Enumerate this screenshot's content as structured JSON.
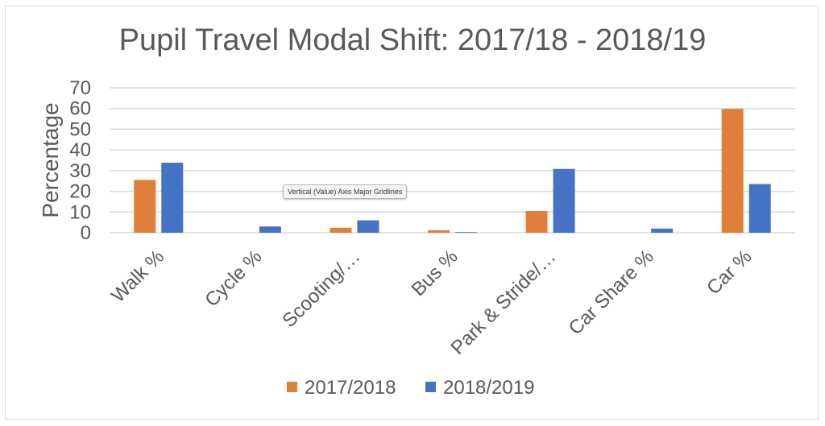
{
  "chart_data": {
    "type": "bar",
    "title": "Pupil Travel Modal Shift: 2017/18 - 2018/19",
    "ylabel": "Percentage",
    "xlabel": "",
    "ylim": [
      0,
      70
    ],
    "yticks": [
      0,
      10,
      20,
      30,
      40,
      50,
      60,
      70
    ],
    "grid": true,
    "legend_position": "bottom",
    "categories": [
      "Walk %",
      "Cycle %",
      "Scooting/…",
      "Bus %",
      "Park & Stride/…",
      "Car Share %",
      "Car %"
    ],
    "series": [
      {
        "name": "2017/2018",
        "color": "#e07e3c",
        "values": [
          25.5,
          0,
          2.4,
          1.2,
          10.5,
          0,
          59.8
        ]
      },
      {
        "name": "2018/2019",
        "color": "#4472c4",
        "values": [
          33.8,
          3,
          6,
          0.3,
          30.8,
          2,
          23.5
        ]
      }
    ]
  },
  "tooltip": "Vertical (Value) Axis Major Gridlines"
}
